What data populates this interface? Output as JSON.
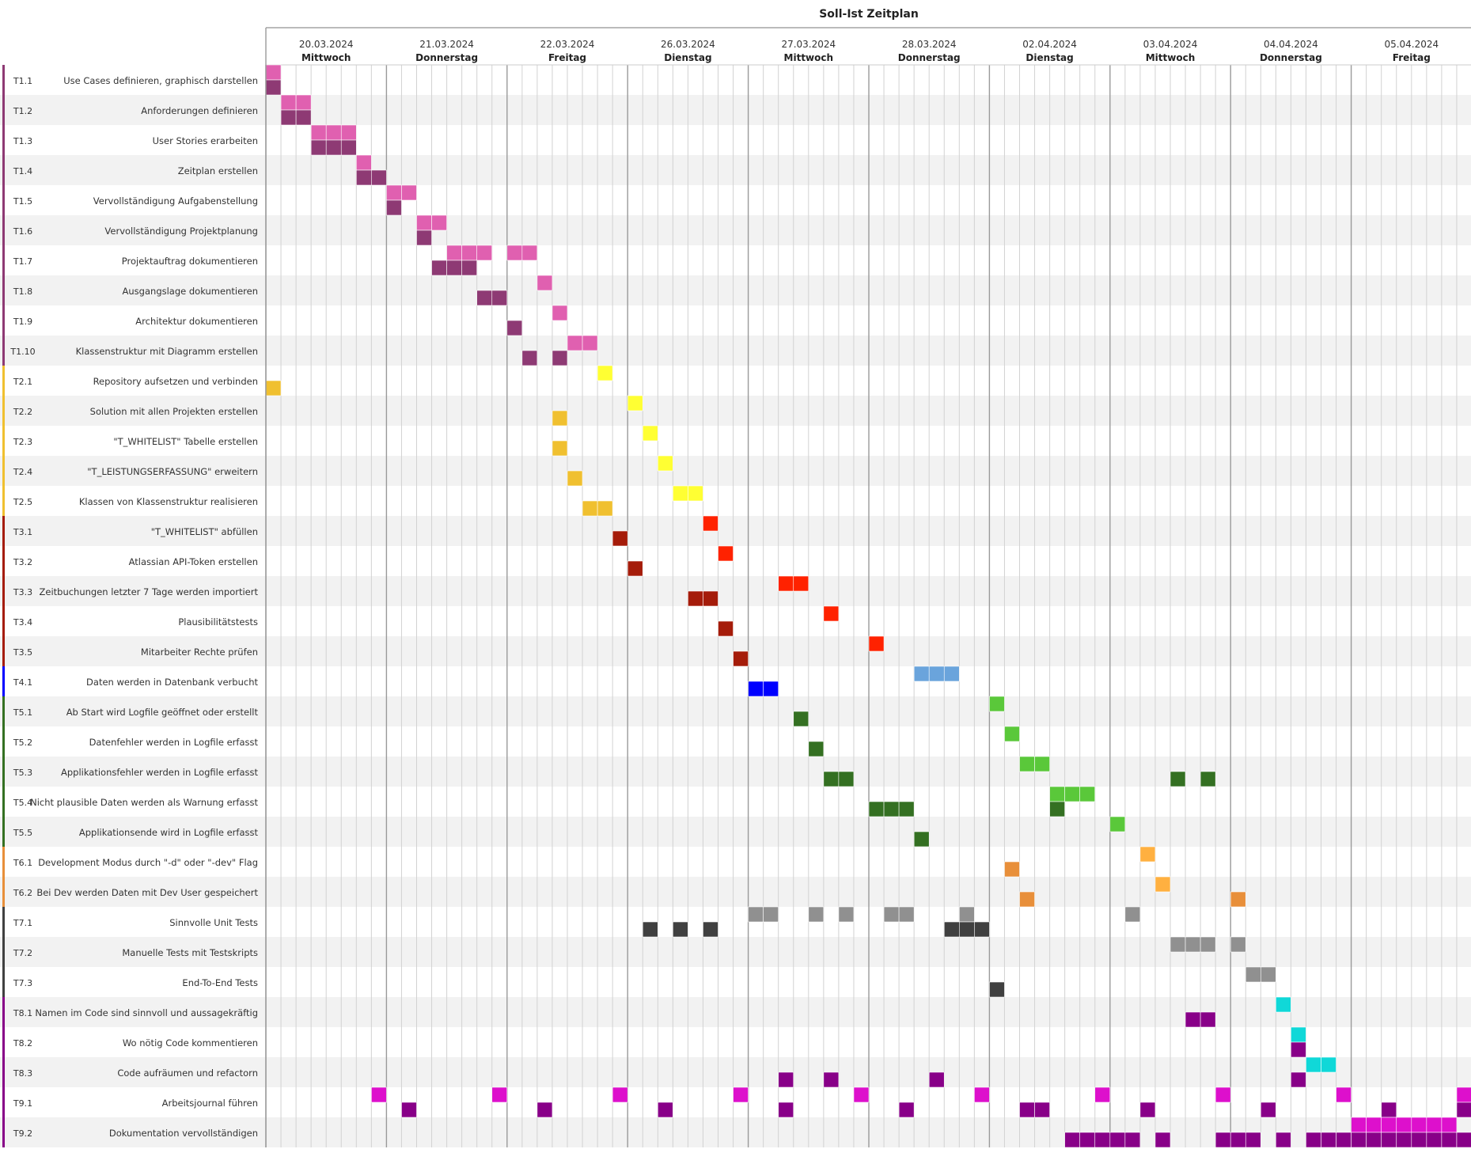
{
  "chart_data": {
    "type": "gantt",
    "title": "Soll-Ist Zeitplan",
    "slots_per_day": 8,
    "days": [
      {
        "date": "20.03.2024",
        "weekday": "Mittwoch"
      },
      {
        "date": "21.03.2024",
        "weekday": "Donnerstag"
      },
      {
        "date": "22.03.2024",
        "weekday": "Freitag"
      },
      {
        "date": "26.03.2024",
        "weekday": "Dienstag"
      },
      {
        "date": "27.03.2024",
        "weekday": "Mittwoch"
      },
      {
        "date": "28.03.2024",
        "weekday": "Donnerstag"
      },
      {
        "date": "02.04.2024",
        "weekday": "Dienstag"
      },
      {
        "date": "03.04.2024",
        "weekday": "Mittwoch"
      },
      {
        "date": "04.04.2024",
        "weekday": "Donnerstag"
      },
      {
        "date": "05.04.2024",
        "weekday": "Freitag"
      }
    ],
    "group_colors": {
      "T1": {
        "soll": "#e060b0",
        "ist": "#8e3a74"
      },
      "T2": {
        "soll": "#ffff33",
        "ist": "#f0c030"
      },
      "T3": {
        "soll": "#ff2200",
        "ist": "#a51c0a"
      },
      "T4": {
        "soll": "#6aa4dc",
        "ist": "#0000ff"
      },
      "T5": {
        "soll": "#5ac83a",
        "ist": "#347022"
      },
      "T6": {
        "soll": "#ffb040",
        "ist": "#e88f3a"
      },
      "T7": {
        "soll": "#909090",
        "ist": "#404040"
      },
      "T8": {
        "soll": "#10d8d8",
        "ist": "#880088"
      },
      "T9": {
        "soll": "#dd10cc",
        "ist": "#880088"
      }
    },
    "tasks": [
      {
        "id": "T1.1",
        "name": "Use Cases definieren, graphisch darstellen",
        "soll": [
          0
        ],
        "ist": [
          0
        ]
      },
      {
        "id": "T1.2",
        "name": "Anforderungen definieren",
        "soll": [
          1,
          2
        ],
        "ist": [
          1,
          2
        ]
      },
      {
        "id": "T1.3",
        "name": "User Stories erarbeiten",
        "soll": [
          3,
          4,
          5
        ],
        "ist": [
          3,
          4,
          5
        ]
      },
      {
        "id": "T1.4",
        "name": "Zeitplan erstellen",
        "soll": [
          6
        ],
        "ist": [
          6,
          7
        ]
      },
      {
        "id": "T1.5",
        "name": "Vervollständigung Aufgabenstellung",
        "soll": [
          8,
          9
        ],
        "ist": [
          8
        ]
      },
      {
        "id": "T1.6",
        "name": "Vervollständigung Projektplanung",
        "soll": [
          10,
          11
        ],
        "ist": [
          10
        ]
      },
      {
        "id": "T1.7",
        "name": "Projektauftrag dokumentieren",
        "soll": [
          12,
          13,
          14,
          16,
          17
        ],
        "ist": [
          11,
          12,
          13
        ]
      },
      {
        "id": "T1.8",
        "name": "Ausgangslage dokumentieren",
        "soll": [
          18
        ],
        "ist": [
          14,
          15
        ]
      },
      {
        "id": "T1.9",
        "name": "Architektur dokumentieren",
        "soll": [
          19
        ],
        "ist": [
          16
        ]
      },
      {
        "id": "T1.10",
        "name": "Klassenstruktur mit Diagramm erstellen",
        "soll": [
          20,
          21
        ],
        "ist": [
          17,
          19
        ]
      },
      {
        "id": "T2.1",
        "name": "Repository aufsetzen und verbinden",
        "soll": [
          22
        ],
        "ist": [
          0
        ]
      },
      {
        "id": "T2.2",
        "name": "Solution mit allen Projekten erstellen",
        "soll": [
          24
        ],
        "ist": [
          19
        ]
      },
      {
        "id": "T2.3",
        "name": "\"T_WHITELIST\" Tabelle erstellen",
        "soll": [
          25
        ],
        "ist": [
          19
        ]
      },
      {
        "id": "T2.4",
        "name": "\"T_LEISTUNGSERFASSUNG\" erweitern",
        "soll": [
          26
        ],
        "ist": [
          20
        ]
      },
      {
        "id": "T2.5",
        "name": "Klassen von Klassenstruktur realisieren",
        "soll": [
          27,
          28
        ],
        "ist": [
          21,
          22
        ]
      },
      {
        "id": "T3.1",
        "name": "\"T_WHITELIST\" abfüllen",
        "soll": [
          29
        ],
        "ist": [
          23
        ]
      },
      {
        "id": "T3.2",
        "name": "Atlassian API-Token erstellen",
        "soll": [
          30
        ],
        "ist": [
          24
        ]
      },
      {
        "id": "T3.3",
        "name": "Zeitbuchungen letzter 7 Tage werden importiert",
        "soll": [
          34,
          35
        ],
        "ist": [
          28,
          29
        ]
      },
      {
        "id": "T3.4",
        "name": "Plausibilitätstests",
        "soll": [
          37
        ],
        "ist": [
          30
        ]
      },
      {
        "id": "T3.5",
        "name": "Mitarbeiter Rechte prüfen",
        "soll": [
          40
        ],
        "ist": [
          31
        ]
      },
      {
        "id": "T4.1",
        "name": "Daten werden in Datenbank verbucht",
        "soll": [
          43,
          44,
          45
        ],
        "ist": [
          32,
          33
        ]
      },
      {
        "id": "T5.1",
        "name": "Ab Start wird Logfile geöffnet oder erstellt",
        "soll": [
          48
        ],
        "ist": [
          35
        ]
      },
      {
        "id": "T5.2",
        "name": "Datenfehler werden in Logfile erfasst",
        "soll": [
          49
        ],
        "ist": [
          36
        ]
      },
      {
        "id": "T5.3",
        "name": "Applikationsfehler werden in Logfile erfasst",
        "soll": [
          50,
          51
        ],
        "ist": [
          37,
          38,
          60,
          62
        ]
      },
      {
        "id": "T5.4",
        "name": "Nicht plausible Daten werden als Warnung erfasst",
        "soll": [
          52,
          53,
          54
        ],
        "ist": [
          40,
          41,
          42,
          52
        ]
      },
      {
        "id": "T5.5",
        "name": "Applikationsende wird in Logfile erfasst",
        "soll": [
          56
        ],
        "ist": [
          43
        ]
      },
      {
        "id": "T6.1",
        "name": "Development Modus durch \"-d\" oder \"-dev\" Flag",
        "soll": [
          58
        ],
        "ist": [
          49
        ]
      },
      {
        "id": "T6.2",
        "name": "Bei Dev werden Daten mit Dev User gespeichert",
        "soll": [
          59
        ],
        "ist": [
          50,
          64
        ]
      },
      {
        "id": "T7.1",
        "name": "Sinnvolle Unit Tests",
        "soll": [
          32,
          33,
          36,
          38,
          41,
          42,
          46,
          57
        ],
        "ist": [
          25,
          27,
          29,
          45,
          46,
          47
        ]
      },
      {
        "id": "T7.2",
        "name": "Manuelle Tests mit Testskripts",
        "soll": [
          60,
          61,
          62,
          64
        ],
        "ist": []
      },
      {
        "id": "T7.3",
        "name": "End-To-End Tests",
        "soll": [
          65,
          66
        ],
        "ist": [
          48
        ]
      },
      {
        "id": "T8.1",
        "name": "Namen im Code sind sinnvoll und aussagekräftig",
        "soll": [
          67
        ],
        "ist": [
          61,
          62
        ]
      },
      {
        "id": "T8.2",
        "name": "Wo nötig Code kommentieren",
        "soll": [
          68
        ],
        "ist": [
          68
        ]
      },
      {
        "id": "T8.3",
        "name": "Code aufräumen und refactorn",
        "soll": [
          69,
          70
        ],
        "ist": [
          34,
          37,
          44,
          68
        ]
      },
      {
        "id": "T9.1",
        "name": "Arbeitsjournal führen",
        "soll": [
          7,
          15,
          23,
          31,
          39,
          47,
          55,
          63,
          71,
          79
        ],
        "ist": [
          9,
          18,
          26,
          34,
          42,
          50,
          51,
          58,
          66,
          74,
          79
        ]
      },
      {
        "id": "T9.2",
        "name": "Dokumentation vervollständigen",
        "soll": [
          72,
          73,
          74,
          75,
          76,
          77,
          78
        ],
        "ist": [
          53,
          54,
          55,
          56,
          57,
          59,
          63,
          64,
          65,
          67,
          69,
          70,
          71,
          72,
          73,
          74,
          75,
          76,
          77,
          78,
          79
        ]
      }
    ]
  }
}
